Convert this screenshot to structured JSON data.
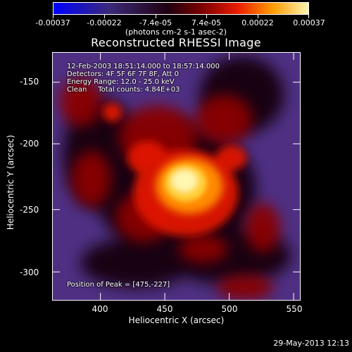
{
  "chart_data": {
    "type": "heatmap",
    "title": "Reconstructed RHESSI Image",
    "xlabel": "Heliocentric X (arcsec)",
    "ylabel": "Heliocentric Y (arcsec)",
    "xlim": [
      365,
      560
    ],
    "ylim": [
      -320,
      -130
    ],
    "x_ticks": [
      400,
      450,
      500,
      550
    ],
    "y_ticks": [
      -150,
      -200,
      -250,
      -300
    ],
    "colorbar": {
      "ticks": [
        "-0.00037",
        "-0.00022",
        "-7.4e-05",
        "7.4e-05",
        "0.00022",
        "0.00037"
      ],
      "range": [
        -0.00037,
        0.00037
      ],
      "units": "(photons cm-2 s-1 asec-2)",
      "colors": [
        "#0000ff",
        "#3b2a78",
        "#200010",
        "#7a0000",
        "#e81a00",
        "#ff9a00",
        "#fff6b0"
      ]
    },
    "annotations": {
      "time_range": "12-Feb-2003 18:51:14.000 to 18:57:14.000",
      "detectors": "Detectors: 4F 5F 6F 7F 8F, Att 0",
      "energy_range": "Energy Range: 12.0 - 25.0 keV",
      "clean_counts": "Clean     Total counts: 4.84E+03",
      "peak_position": "Position of Peak = [475,-227]"
    },
    "peak": {
      "x": 475,
      "y": -227
    }
  },
  "timestamp": "29-May-2013 12:13"
}
